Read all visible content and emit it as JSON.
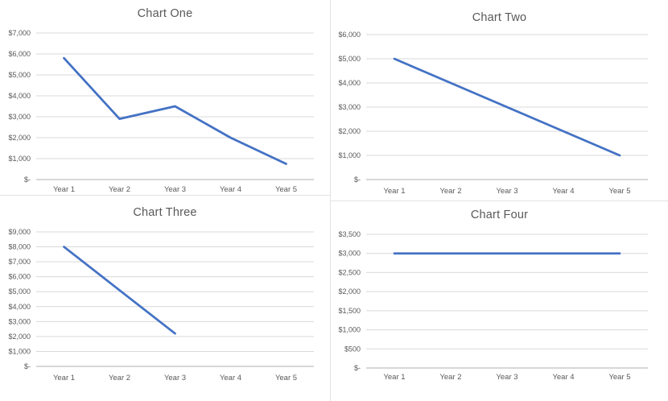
{
  "figure": {
    "arrangement": "2x2 grid of line charts",
    "background": "#FFFFFF"
  },
  "style": {
    "line_color": "#4472C4",
    "gridline_color": "#D9D9D9",
    "axis_color": "#BFBFBF",
    "text_color": "#595959",
    "panel_border": "#E3E3E3",
    "background": "#FFFFFF"
  },
  "chart_data": [
    {
      "type": "line",
      "title": "Chart One",
      "categories": [
        "Year 1",
        "Year 2",
        "Year 3",
        "Year 4",
        "Year 5"
      ],
      "values": [
        5800,
        2900,
        3500,
        2000,
        750
      ],
      "ylim": [
        0,
        7000
      ],
      "ytick_step": 1000,
      "ytick_labels": [
        "$-",
        "$1,000",
        "$2,000",
        "$3,000",
        "$4,000",
        "$5,000",
        "$6,000",
        "$7,000"
      ],
      "xlabel": "",
      "ylabel": "",
      "grid": true,
      "legend": "none",
      "line_color": "#4472C4"
    },
    {
      "type": "line",
      "title": "Chart Two",
      "categories": [
        "Year 1",
        "Year 2",
        "Year 3",
        "Year 4",
        "Year 5"
      ],
      "values": [
        5000,
        4000,
        3000,
        2000,
        1000
      ],
      "ylim": [
        0,
        6000
      ],
      "ytick_step": 1000,
      "ytick_labels": [
        "$-",
        "$1,000",
        "$2,000",
        "$3,000",
        "$4,000",
        "$5,000",
        "$6,000"
      ],
      "xlabel": "",
      "ylabel": "",
      "grid": true,
      "legend": "none",
      "line_color": "#4472C4"
    },
    {
      "type": "line",
      "title": "Chart Three",
      "categories": [
        "Year 1",
        "Year 2",
        "Year 3",
        "Year 4",
        "Year 5"
      ],
      "values": [
        8000,
        5100,
        2200,
        null,
        null
      ],
      "ylim": [
        0,
        9000
      ],
      "ytick_step": 1000,
      "ytick_labels": [
        "$-",
        "$1,000",
        "$2,000",
        "$3,000",
        "$4,000",
        "$5,000",
        "$6,000",
        "$7,000",
        "$8,000",
        "$9,000"
      ],
      "xlabel": "",
      "ylabel": "",
      "grid": true,
      "legend": "none",
      "line_color": "#4472C4"
    },
    {
      "type": "line",
      "title": "Chart Four",
      "categories": [
        "Year 1",
        "Year 2",
        "Year 3",
        "Year 4",
        "Year 5"
      ],
      "values": [
        3000,
        3000,
        3000,
        3000,
        3000
      ],
      "ylim": [
        0,
        3500
      ],
      "ytick_step": 500,
      "ytick_labels": [
        "$-",
        "$500",
        "$1,000",
        "$1,500",
        "$2,000",
        "$2,500",
        "$3,000",
        "$3,500"
      ],
      "xlabel": "",
      "ylabel": "",
      "grid": true,
      "legend": "none",
      "line_color": "#4472C4"
    }
  ]
}
